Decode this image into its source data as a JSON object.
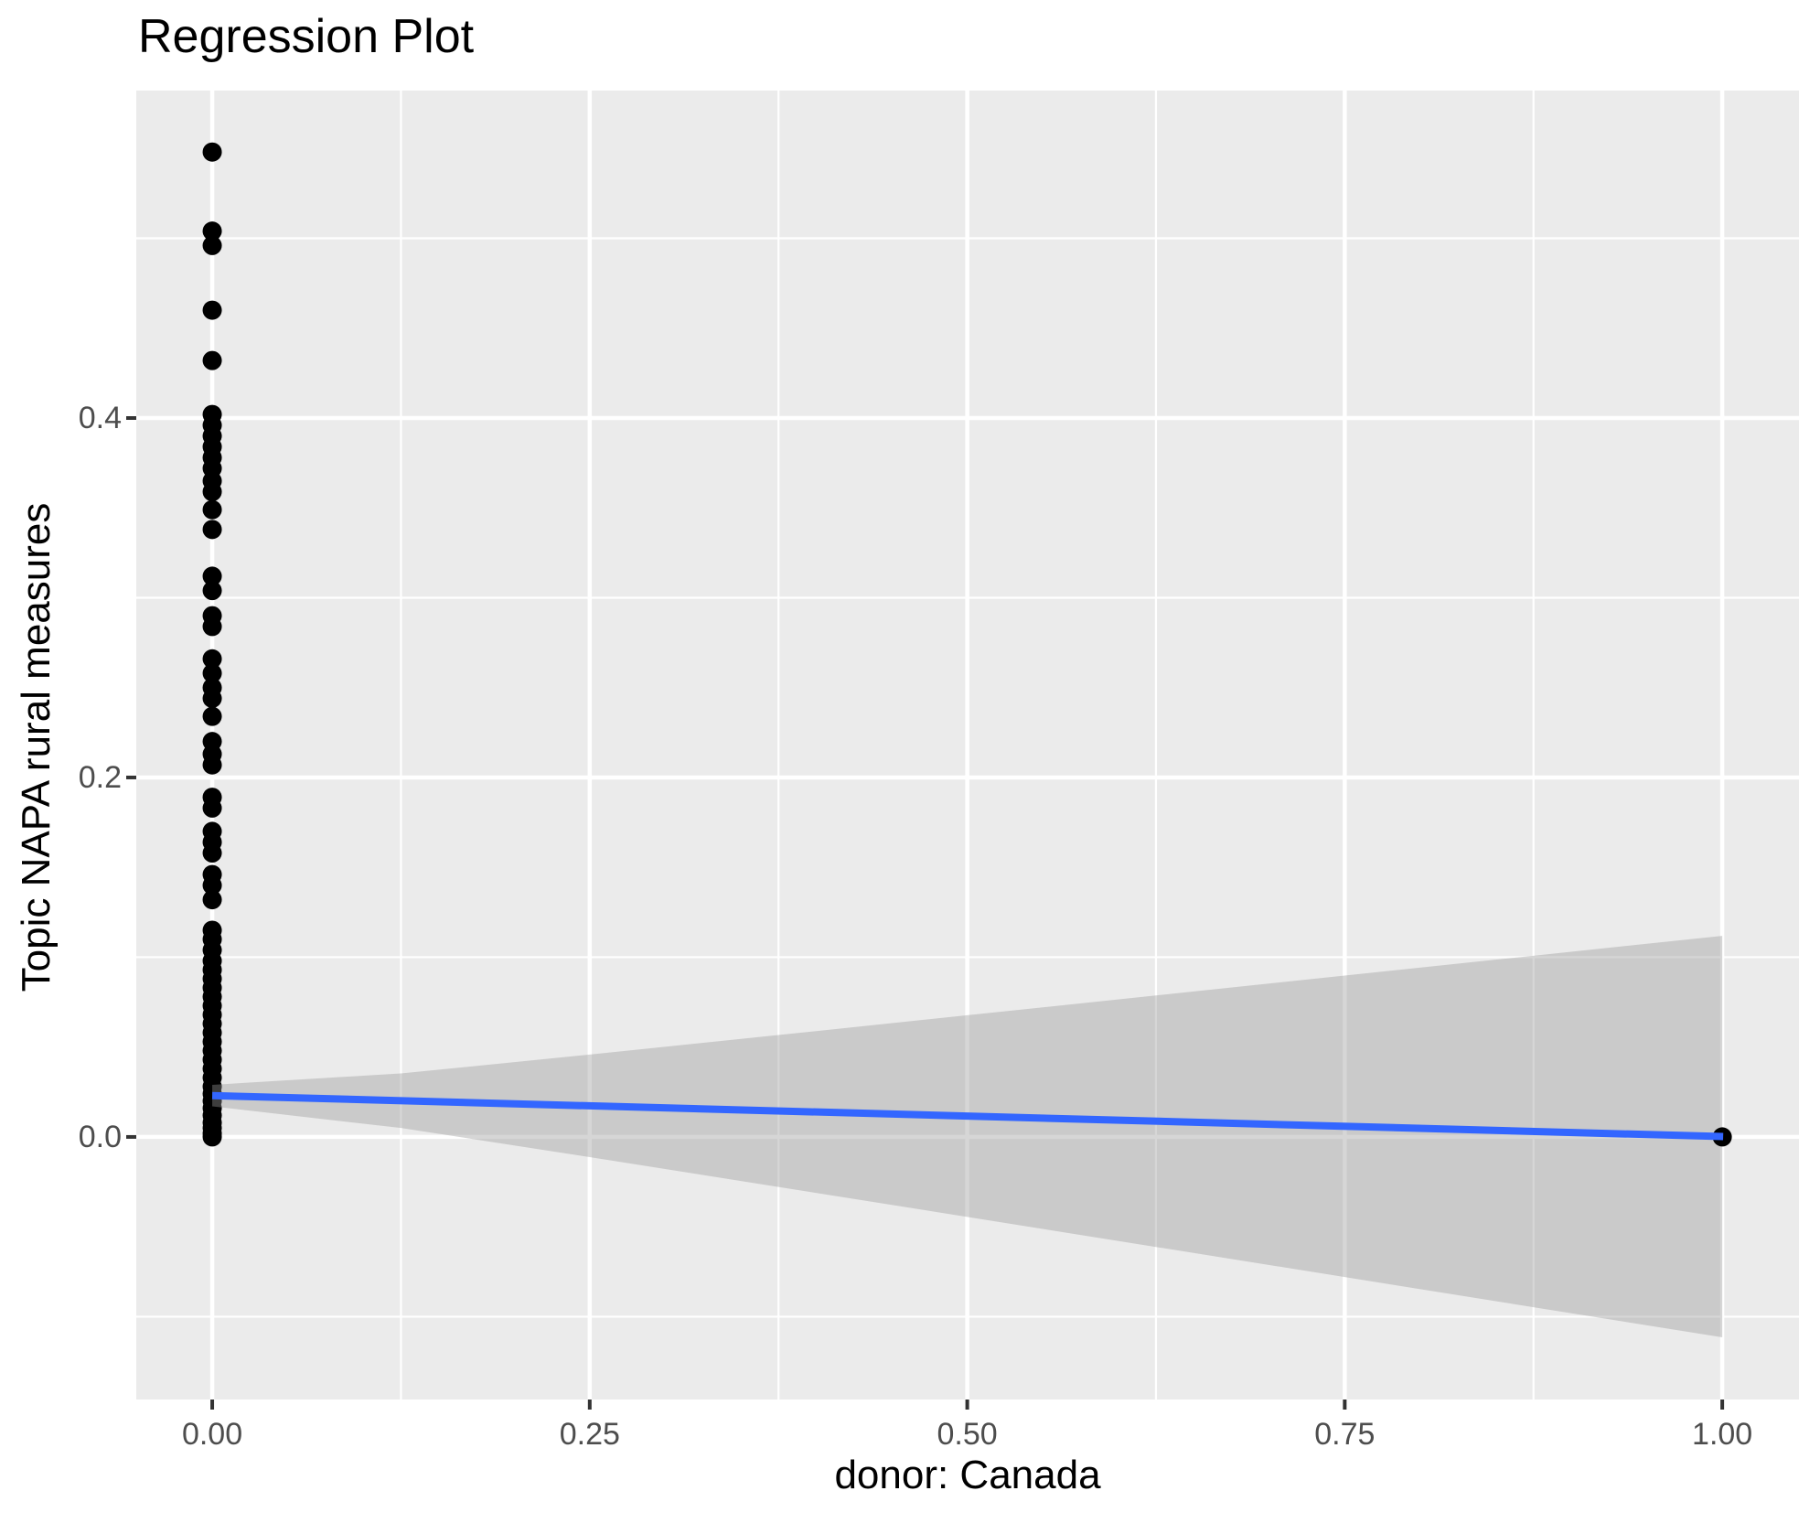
{
  "title": "Regression Plot",
  "x_axis": {
    "label": "donor: Canada",
    "tick_labels": [
      "0.00",
      "0.25",
      "0.50",
      "0.75",
      "1.00"
    ],
    "tick_values": [
      0,
      0.25,
      0.5,
      0.75,
      1.0
    ],
    "minor_tick_values": [
      0.125,
      0.375,
      0.625,
      0.875
    ]
  },
  "y_axis": {
    "label": "Topic NAPA rural measures",
    "tick_labels": [
      "0.0",
      "0.2",
      "0.4"
    ],
    "tick_values": [
      0,
      0.2,
      0.4
    ],
    "minor_tick_values": [
      -0.1,
      0.1,
      0.3,
      0.5
    ]
  },
  "chart_data": {
    "type": "scatter",
    "title": "Regression Plot",
    "xlabel": "donor: Canada",
    "ylabel": "Topic NAPA rural measures",
    "xlim": [
      -0.0503,
      1.0508
    ],
    "ylim": [
      -0.1461,
      0.5822
    ],
    "grid": "on",
    "legend": "none",
    "colors": {
      "panel_background": "#EBEBEB",
      "gridline": "#FFFFFF",
      "point": "#000000",
      "regression_line": "#3366FF",
      "confidence_band_fill": "#999999",
      "confidence_band_opacity": 0.4,
      "tick_label": "#4D4D4D",
      "tick_mark": "#333333",
      "title_text": "#000000"
    },
    "series": [
      {
        "name": "observations",
        "type": "scatter",
        "color": "#000000",
        "points": [
          [
            0,
            0.548
          ],
          [
            0,
            0.504
          ],
          [
            0,
            0.496
          ],
          [
            0,
            0.46
          ],
          [
            0,
            0.432
          ],
          [
            0,
            0.402
          ],
          [
            0,
            0.396
          ],
          [
            0,
            0.39
          ],
          [
            0,
            0.384
          ],
          [
            0,
            0.378
          ],
          [
            0,
            0.372
          ],
          [
            0,
            0.365
          ],
          [
            0,
            0.359
          ],
          [
            0,
            0.349
          ],
          [
            0,
            0.338
          ],
          [
            0,
            0.312
          ],
          [
            0,
            0.304
          ],
          [
            0,
            0.29
          ],
          [
            0,
            0.284
          ],
          [
            0,
            0.266
          ],
          [
            0,
            0.258
          ],
          [
            0,
            0.25
          ],
          [
            0,
            0.244
          ],
          [
            0,
            0.234
          ],
          [
            0,
            0.22
          ],
          [
            0,
            0.213
          ],
          [
            0,
            0.207
          ],
          [
            0,
            0.189
          ],
          [
            0,
            0.183
          ],
          [
            0,
            0.17
          ],
          [
            0,
            0.164
          ],
          [
            0,
            0.158
          ],
          [
            0,
            0.146
          ],
          [
            0,
            0.14
          ],
          [
            0,
            0.132
          ],
          [
            0,
            0.115
          ],
          [
            0,
            0.11
          ],
          [
            0,
            0.104
          ],
          [
            0,
            0.098
          ],
          [
            0,
            0.093
          ],
          [
            0,
            0.088
          ],
          [
            0,
            0.083
          ],
          [
            0,
            0.078
          ],
          [
            0,
            0.073
          ],
          [
            0,
            0.068
          ],
          [
            0,
            0.063
          ],
          [
            0,
            0.058
          ],
          [
            0,
            0.053
          ],
          [
            0,
            0.048
          ],
          [
            0,
            0.043
          ],
          [
            0,
            0.038
          ],
          [
            0,
            0.033
          ],
          [
            0,
            0.028
          ],
          [
            0,
            0.024
          ],
          [
            0,
            0.02
          ],
          [
            0,
            0.016
          ],
          [
            0,
            0.012
          ],
          [
            0,
            0.008
          ],
          [
            0,
            0.005
          ],
          [
            0,
            0.002
          ],
          [
            0,
            0.0
          ],
          [
            1,
            0.0
          ]
        ]
      },
      {
        "name": "regression-line",
        "type": "line",
        "color": "#3366FF",
        "points": [
          [
            0,
            0.023
          ],
          [
            1,
            0.0002
          ]
        ]
      },
      {
        "name": "confidence-band",
        "type": "area",
        "fill": "#999999",
        "opacity": 0.4,
        "center_at_x0": 0.023,
        "center_at_x1": 0.0002,
        "half_width_at_x0": 0.006,
        "half_width_at_x1": 0.1117
      }
    ]
  }
}
